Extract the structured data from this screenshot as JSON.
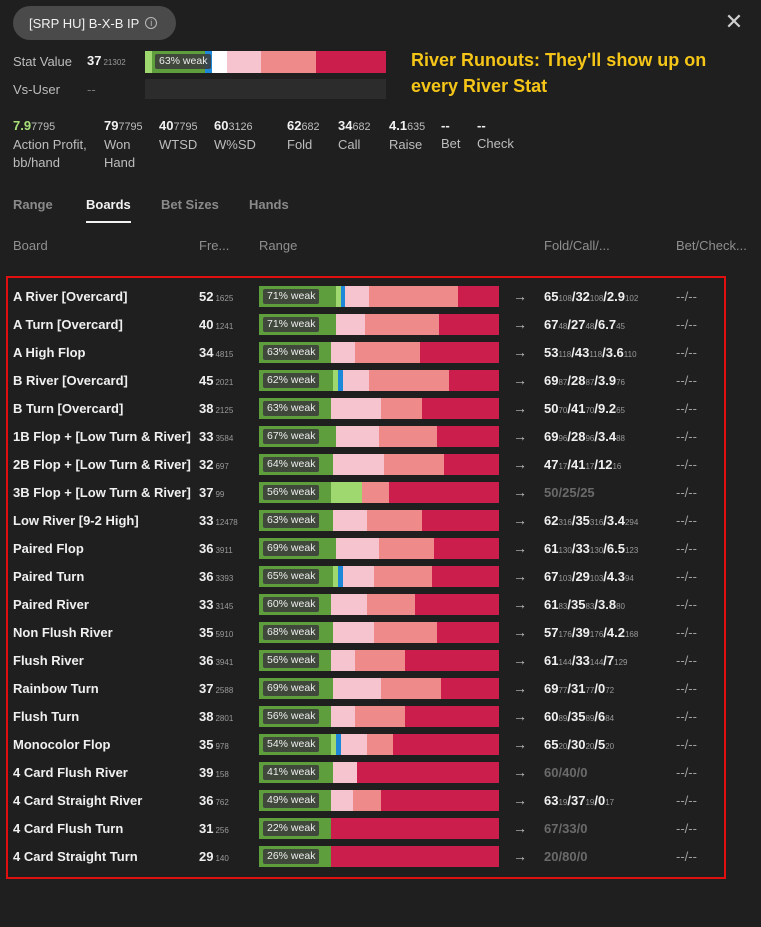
{
  "header": {
    "title": "[SRP HU] B-X-B IP",
    "close_icon": "close-icon",
    "stat_value_label": "Stat Value",
    "stat_value": "37",
    "stat_value_sample": "21302",
    "stat_bar_label": "63% weak",
    "stat_bar_segments": [
      {
        "color": "#9fd86f",
        "frac": 0.03
      },
      {
        "color": "#5f9e3c",
        "frac": 0.22
      },
      {
        "color": "#1e88d8",
        "frac": 0.03
      },
      {
        "color": "#ffffff",
        "frac": 0.06
      },
      {
        "color": "#f5c4cf",
        "frac": 0.14
      },
      {
        "color": "#ee8a8a",
        "frac": 0.23
      },
      {
        "color": "#cc1e4c",
        "frac": 0.29
      }
    ],
    "vs_user_label": "Vs-User",
    "vs_user_value": "--"
  },
  "callout": "River Runouts: They'll show up on every River Stat",
  "metrics": [
    {
      "value": "7.9",
      "sample": "7795",
      "label": "Action Profit, bb/hand",
      "highlight": true
    },
    {
      "value": "79",
      "sample": "7795",
      "label": "Won Hand"
    },
    {
      "value": "40",
      "sample": "7795",
      "label": "WTSD"
    },
    {
      "value": "60",
      "sample": "3126",
      "label": "W%SD"
    },
    {
      "value": "62",
      "sample": "682",
      "label": "Fold"
    },
    {
      "value": "34",
      "sample": "682",
      "label": "Call"
    },
    {
      "value": "4.1",
      "sample": "635",
      "label": "Raise"
    },
    {
      "value": "--",
      "sample": "",
      "label": "Bet"
    },
    {
      "value": "--",
      "sample": "",
      "label": "Check"
    }
  ],
  "tabs": [
    "Range",
    "Boards",
    "Bet Sizes",
    "Hands"
  ],
  "active_tab": "Boards",
  "columns": {
    "board": "Board",
    "freq": "Fre...",
    "range": "Range",
    "fcr": "Fold/Call/...",
    "bet": "Bet/Check..."
  },
  "rows": [
    {
      "board": "A River [Overcard]",
      "freq": "52",
      "freq_n": "1625",
      "weak": "71% weak",
      "segs": [
        0.32,
        0.02,
        0.02,
        0.1,
        0.37,
        0.17
      ],
      "fold": "65",
      "fold_n": "108",
      "call": "32",
      "call_n": "108",
      "raise": "2.9",
      "raise_n": "102",
      "bet": "--/--"
    },
    {
      "board": "A Turn [Overcard]",
      "freq": "40",
      "freq_n": "1241",
      "weak": "71% weak",
      "segs": [
        0.32,
        0.0,
        0.0,
        0.12,
        0.31,
        0.25
      ],
      "fold": "67",
      "fold_n": "48",
      "call": "27",
      "call_n": "48",
      "raise": "6.7",
      "raise_n": "45",
      "bet": "--/--"
    },
    {
      "board": "A High Flop",
      "freq": "34",
      "freq_n": "4815",
      "weak": "63% weak",
      "segs": [
        0.3,
        0.0,
        0.0,
        0.1,
        0.27,
        0.33
      ],
      "fold": "53",
      "fold_n": "118",
      "call": "43",
      "call_n": "118",
      "raise": "3.6",
      "raise_n": "110",
      "bet": "--/--"
    },
    {
      "board": "B River [Overcard]",
      "freq": "45",
      "freq_n": "2021",
      "weak": "62% weak",
      "segs": [
        0.31,
        0.02,
        0.02,
        0.11,
        0.33,
        0.21
      ],
      "fold": "69",
      "fold_n": "87",
      "call": "28",
      "call_n": "87",
      "raise": "3.9",
      "raise_n": "76",
      "bet": "--/--"
    },
    {
      "board": "B Turn [Overcard]",
      "freq": "38",
      "freq_n": "2125",
      "weak": "63% weak",
      "segs": [
        0.3,
        0.0,
        0.0,
        0.21,
        0.17,
        0.32
      ],
      "fold": "50",
      "fold_n": "70",
      "call": "41",
      "call_n": "70",
      "raise": "9.2",
      "raise_n": "65",
      "bet": "--/--"
    },
    {
      "board": "1B Flop + [Low Turn & River]",
      "freq": "33",
      "freq_n": "3584",
      "weak": "67% weak",
      "segs": [
        0.32,
        0.0,
        0.0,
        0.18,
        0.24,
        0.26
      ],
      "fold": "69",
      "fold_n": "96",
      "call": "28",
      "call_n": "96",
      "raise": "3.4",
      "raise_n": "88",
      "bet": "--/--"
    },
    {
      "board": "2B Flop + [Low Turn & River]",
      "freq": "32",
      "freq_n": "697",
      "weak": "64% weak",
      "segs": [
        0.31,
        0.0,
        0.0,
        0.21,
        0.25,
        0.23
      ],
      "fold": "47",
      "fold_n": "17",
      "call": "41",
      "call_n": "17",
      "raise": "12",
      "raise_n": "16",
      "bet": "--/--"
    },
    {
      "board": "3B Flop + [Low Turn & River]",
      "freq": "37",
      "freq_n": "99",
      "weak": "56% weak",
      "segs": [
        0.3,
        0.13,
        0.0,
        0.0,
        0.11,
        0.46
      ],
      "fold": "50",
      "fold_n": "",
      "call": "25",
      "call_n": "",
      "raise": "25",
      "raise_n": "",
      "dim": true,
      "bet": "--/--"
    },
    {
      "board": "Low River [9-2 High]",
      "freq": "33",
      "freq_n": "12478",
      "weak": "63% weak",
      "segs": [
        0.31,
        0.0,
        0.0,
        0.14,
        0.23,
        0.32
      ],
      "fold": "62",
      "fold_n": "316",
      "call": "35",
      "call_n": "316",
      "raise": "3.4",
      "raise_n": "294",
      "bet": "--/--"
    },
    {
      "board": "Paired Flop",
      "freq": "36",
      "freq_n": "3911",
      "weak": "69% weak",
      "segs": [
        0.32,
        0.0,
        0.0,
        0.18,
        0.23,
        0.27
      ],
      "fold": "61",
      "fold_n": "130",
      "call": "33",
      "call_n": "130",
      "raise": "6.5",
      "raise_n": "123",
      "bet": "--/--"
    },
    {
      "board": "Paired Turn",
      "freq": "36",
      "freq_n": "3393",
      "weak": "65% weak",
      "segs": [
        0.31,
        0.02,
        0.02,
        0.13,
        0.24,
        0.28
      ],
      "fold": "67",
      "fold_n": "103",
      "call": "29",
      "call_n": "103",
      "raise": "4.3",
      "raise_n": "94",
      "bet": "--/--"
    },
    {
      "board": "Paired River",
      "freq": "33",
      "freq_n": "3145",
      "weak": "60% weak",
      "segs": [
        0.3,
        0.0,
        0.0,
        0.15,
        0.2,
        0.35
      ],
      "fold": "61",
      "fold_n": "83",
      "call": "35",
      "call_n": "83",
      "raise": "3.8",
      "raise_n": "80",
      "bet": "--/--"
    },
    {
      "board": "Non Flush River",
      "freq": "35",
      "freq_n": "5910",
      "weak": "68% weak",
      "segs": [
        0.31,
        0.0,
        0.0,
        0.17,
        0.26,
        0.26
      ],
      "fold": "57",
      "fold_n": "176",
      "call": "39",
      "call_n": "176",
      "raise": "4.2",
      "raise_n": "168",
      "bet": "--/--"
    },
    {
      "board": "Flush River",
      "freq": "36",
      "freq_n": "3941",
      "weak": "56% weak",
      "segs": [
        0.3,
        0.0,
        0.0,
        0.1,
        0.21,
        0.39
      ],
      "fold": "61",
      "fold_n": "144",
      "call": "33",
      "call_n": "144",
      "raise": "7",
      "raise_n": "129",
      "bet": "--/--"
    },
    {
      "board": "Rainbow Turn",
      "freq": "37",
      "freq_n": "2588",
      "weak": "69% weak",
      "segs": [
        0.31,
        0.0,
        0.0,
        0.2,
        0.25,
        0.24
      ],
      "fold": "69",
      "fold_n": "77",
      "call": "31",
      "call_n": "77",
      "raise": "0",
      "raise_n": "72",
      "bet": "--/--"
    },
    {
      "board": "Flush Turn",
      "freq": "38",
      "freq_n": "2801",
      "weak": "56% weak",
      "segs": [
        0.3,
        0.0,
        0.0,
        0.1,
        0.21,
        0.39
      ],
      "fold": "60",
      "fold_n": "89",
      "call": "35",
      "call_n": "89",
      "raise": "6",
      "raise_n": "84",
      "bet": "--/--"
    },
    {
      "board": "Monocolor Flop",
      "freq": "35",
      "freq_n": "978",
      "weak": "54% weak",
      "segs": [
        0.3,
        0.02,
        0.02,
        0.11,
        0.11,
        0.44
      ],
      "fold": "65",
      "fold_n": "20",
      "call": "30",
      "call_n": "20",
      "raise": "5",
      "raise_n": "20",
      "bet": "--/--"
    },
    {
      "board": "4 Card Flush River",
      "freq": "39",
      "freq_n": "158",
      "weak": "41% weak",
      "segs": [
        0.31,
        0.0,
        0.0,
        0.1,
        0.0,
        0.59
      ],
      "fold": "60",
      "fold_n": "",
      "call": "40",
      "call_n": "",
      "raise": "0",
      "raise_n": "",
      "dim": true,
      "bet": "--/--"
    },
    {
      "board": "4 Card Straight River",
      "freq": "36",
      "freq_n": "762",
      "weak": "49% weak",
      "segs": [
        0.3,
        0.0,
        0.0,
        0.09,
        0.12,
        0.49
      ],
      "fold": "63",
      "fold_n": "19",
      "call": "37",
      "call_n": "19",
      "raise": "0",
      "raise_n": "17",
      "bet": "--/--"
    },
    {
      "board": "4 Card Flush Turn",
      "freq": "31",
      "freq_n": "256",
      "weak": "22% weak",
      "segs": [
        0.3,
        0.0,
        0.0,
        0.0,
        0.0,
        0.7
      ],
      "fold": "67",
      "fold_n": "",
      "call": "33",
      "call_n": "",
      "raise": "0",
      "raise_n": "",
      "dim": true,
      "bet": "--/--"
    },
    {
      "board": "4 Card Straight Turn",
      "freq": "29",
      "freq_n": "140",
      "weak": "26% weak",
      "segs": [
        0.3,
        0.0,
        0.0,
        0.0,
        0.0,
        0.7
      ],
      "fold": "20",
      "fold_n": "",
      "call": "80",
      "call_n": "",
      "raise": "0",
      "raise_n": "",
      "dim": true,
      "bet": "--/--"
    }
  ],
  "segment_colors": [
    "#5f9e3c",
    "#9fd86f",
    "#1e88d8",
    "#f5c4cf",
    "#ee8a8a",
    "#cc1e4c"
  ],
  "arrow_icon": "arrow-right-icon"
}
